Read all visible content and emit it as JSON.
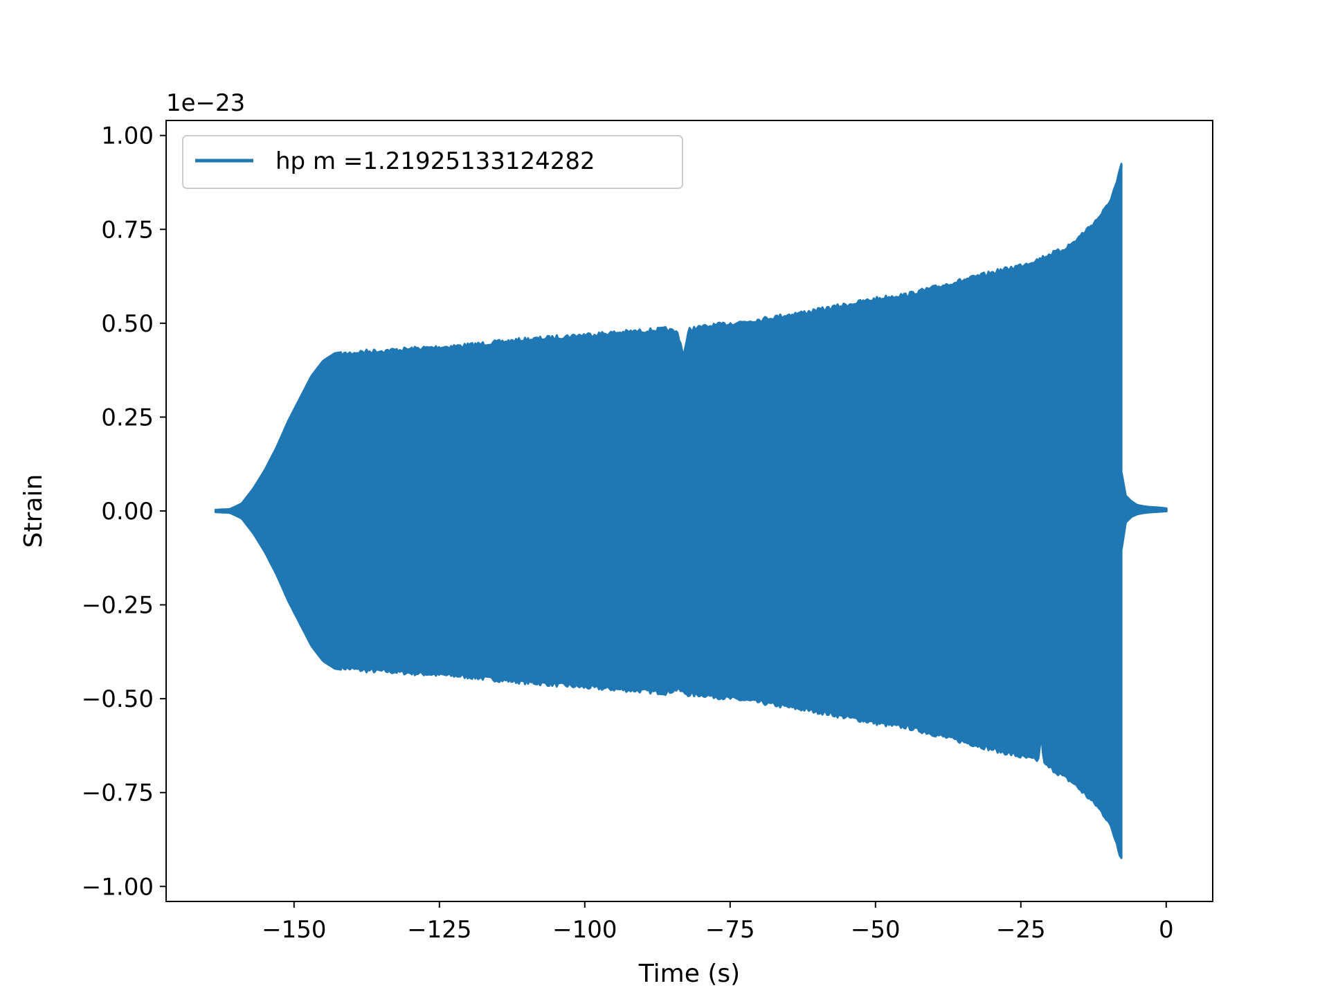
{
  "chart_data": {
    "type": "line",
    "xlabel": "Time (s)",
    "ylabel": "Strain",
    "y_offset_label": "1e−23",
    "xlim": [
      -172,
      8
    ],
    "ylim": [
      -1.04,
      1.04
    ],
    "xticks": [
      -150,
      -125,
      -100,
      -75,
      -50,
      -25,
      0
    ],
    "xtick_labels": [
      "−150",
      "−125",
      "−100",
      "−75",
      "−50",
      "−25",
      "0"
    ],
    "yticks": [
      1.0,
      0.75,
      0.5,
      0.25,
      0.0,
      -0.25,
      -0.5,
      -0.75,
      -1.0
    ],
    "ytick_labels": [
      "1.00",
      "0.75",
      "0.50",
      "0.25",
      "0.00",
      "−0.25",
      "−0.50",
      "−0.75",
      "−1.00"
    ],
    "grid": false,
    "legend_position": "top-left",
    "series": [
      {
        "name": "hp m =1.21925133124282",
        "color": "#1f77b4",
        "envelope_upper": {
          "x": [
            -163.5,
            -161,
            -159,
            -157,
            -155,
            -153,
            -151,
            -149,
            -147,
            -145,
            -143,
            -141,
            -138,
            -134,
            -130,
            -125,
            -120,
            -115,
            -110,
            -105,
            -100,
            -95,
            -90,
            -86,
            -84,
            -83,
            -82,
            -80,
            -75,
            -70,
            -65,
            -60,
            -55,
            -50,
            -46,
            -45,
            -40,
            -35,
            -30,
            -25,
            -22,
            -20,
            -18,
            -16,
            -14,
            -12,
            -11,
            -10,
            -9,
            -8.5,
            -8,
            -7.7
          ],
          "y": [
            0.003,
            0.005,
            0.02,
            0.06,
            0.11,
            0.17,
            0.24,
            0.3,
            0.36,
            0.4,
            0.42,
            0.425,
            0.43,
            0.433,
            0.437,
            0.442,
            0.447,
            0.455,
            0.462,
            0.468,
            0.475,
            0.48,
            0.485,
            0.49,
            0.48,
            0.42,
            0.49,
            0.495,
            0.505,
            0.515,
            0.528,
            0.54,
            0.555,
            0.57,
            0.58,
            0.58,
            0.6,
            0.62,
            0.64,
            0.66,
            0.675,
            0.69,
            0.7,
            0.72,
            0.75,
            0.78,
            0.8,
            0.82,
            0.86,
            0.88,
            0.91,
            0.925
          ]
        },
        "envelope_lower": {
          "x": [
            -163.5,
            -161,
            -159,
            -157,
            -155,
            -153,
            -151,
            -149,
            -147,
            -145,
            -143,
            -141,
            -138,
            -134,
            -130,
            -125,
            -120,
            -115,
            -110,
            -105,
            -100,
            -95,
            -90,
            -86,
            -84,
            -83,
            -82,
            -80,
            -75,
            -70,
            -65,
            -60,
            -55,
            -50,
            -46,
            -45,
            -40,
            -35,
            -30,
            -25,
            -22,
            -21.5,
            -21,
            -20,
            -18,
            -16,
            -14,
            -12,
            -11,
            -10,
            -9,
            -8.5,
            -8,
            -7.7
          ],
          "y": [
            -0.003,
            -0.005,
            -0.02,
            -0.06,
            -0.11,
            -0.17,
            -0.24,
            -0.3,
            -0.36,
            -0.4,
            -0.42,
            -0.425,
            -0.43,
            -0.433,
            -0.437,
            -0.442,
            -0.447,
            -0.455,
            -0.462,
            -0.468,
            -0.475,
            -0.48,
            -0.485,
            -0.49,
            -0.48,
            -0.49,
            -0.495,
            -0.495,
            -0.505,
            -0.515,
            -0.528,
            -0.54,
            -0.555,
            -0.57,
            -0.58,
            -0.58,
            -0.6,
            -0.62,
            -0.64,
            -0.66,
            -0.67,
            -0.6,
            -0.68,
            -0.69,
            -0.71,
            -0.73,
            -0.76,
            -0.79,
            -0.81,
            -0.83,
            -0.87,
            -0.89,
            -0.92,
            -0.925
          ]
        },
        "ringdown": {
          "x": [
            -7.7,
            -7,
            -6,
            -5,
            -4,
            -3,
            -2,
            -1,
            0
          ],
          "y_upper": [
            0.1,
            0.04,
            0.025,
            0.015,
            0.012,
            0.01,
            0.009,
            0.008,
            0.006
          ],
          "y_lower": [
            -0.1,
            -0.03,
            -0.015,
            -0.008,
            -0.005,
            -0.003,
            -0.002,
            -0.001,
            0.0
          ]
        }
      }
    ]
  }
}
